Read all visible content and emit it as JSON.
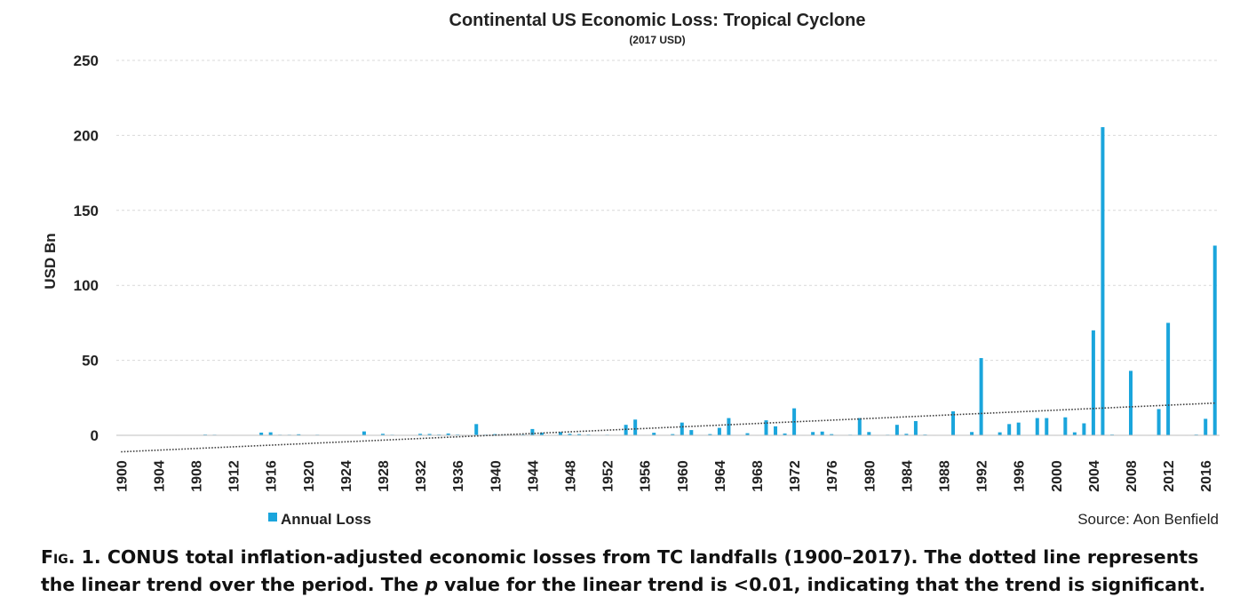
{
  "chart_data": {
    "type": "bar",
    "title": "Continental US Economic Loss: Tropical Cyclone",
    "subtitle": "(2017 USD)",
    "ylabel": "USD Bn",
    "xlabel": "",
    "ylim": [
      0,
      250
    ],
    "yticks": [
      0,
      50,
      100,
      150,
      200,
      250
    ],
    "x_tick_labels": [
      "1900",
      "1904",
      "1908",
      "1912",
      "1916",
      "1920",
      "1924",
      "1928",
      "1932",
      "1936",
      "1940",
      "1944",
      "1948",
      "1952",
      "1956",
      "1960",
      "1964",
      "1968",
      "1972",
      "1976",
      "1980",
      "1984",
      "1988",
      "1992",
      "1996",
      "2000",
      "2004",
      "2008",
      "2012",
      "2016"
    ],
    "grid": "horizontal dotted",
    "legend_position": "bottom-left",
    "bar_color": "#1aa5dc",
    "trend_color": "#404040",
    "series": [
      {
        "name": "Annual Loss",
        "years": [
          1900,
          1901,
          1902,
          1903,
          1904,
          1905,
          1906,
          1907,
          1908,
          1909,
          1910,
          1911,
          1912,
          1913,
          1914,
          1915,
          1916,
          1917,
          1918,
          1919,
          1920,
          1921,
          1922,
          1923,
          1924,
          1925,
          1926,
          1927,
          1928,
          1929,
          1930,
          1931,
          1932,
          1933,
          1934,
          1935,
          1936,
          1937,
          1938,
          1939,
          1940,
          1941,
          1942,
          1943,
          1944,
          1945,
          1946,
          1947,
          1948,
          1949,
          1950,
          1951,
          1952,
          1953,
          1954,
          1955,
          1956,
          1957,
          1958,
          1959,
          1960,
          1961,
          1962,
          1963,
          1964,
          1965,
          1966,
          1967,
          1968,
          1969,
          1970,
          1971,
          1972,
          1973,
          1974,
          1975,
          1976,
          1977,
          1978,
          1979,
          1980,
          1981,
          1982,
          1983,
          1984,
          1985,
          1986,
          1987,
          1988,
          1989,
          1990,
          1991,
          1992,
          1993,
          1994,
          1995,
          1996,
          1997,
          1998,
          1999,
          2000,
          2001,
          2002,
          2003,
          2004,
          2005,
          2006,
          2007,
          2008,
          2009,
          2010,
          2011,
          2012,
          2013,
          2014,
          2015,
          2016,
          2017
        ],
        "values": [
          0.3,
          0.2,
          0.2,
          0.2,
          0.3,
          0.2,
          0.3,
          0.2,
          0.2,
          0.5,
          0.4,
          0.2,
          0.3,
          0.2,
          0.2,
          1.8,
          2.0,
          0.4,
          0.4,
          0.7,
          0.2,
          0.4,
          0.2,
          0.2,
          0.2,
          0.2,
          2.6,
          0.2,
          1.0,
          0.4,
          0.2,
          0.2,
          1.0,
          0.9,
          0.5,
          1.2,
          0.5,
          0.3,
          7.5,
          0.4,
          0.8,
          0.4,
          0.3,
          0.5,
          4.2,
          1.8,
          0.3,
          2.2,
          1.0,
          0.8,
          0.5,
          0.2,
          0.4,
          0.3,
          7.0,
          10.5,
          0.3,
          1.7,
          0.2,
          0.8,
          8.5,
          3.5,
          0.3,
          0.8,
          5.0,
          11.5,
          0.3,
          1.4,
          0.3,
          10.0,
          6.0,
          1.2,
          18.0,
          0.3,
          2.2,
          2.5,
          0.8,
          0.2,
          0.4,
          11.5,
          2.2,
          0.3,
          0.4,
          7.0,
          1.0,
          9.5,
          0.5,
          0.3,
          0.2,
          16.0,
          0.2,
          2.2,
          51.5,
          0.2,
          2.0,
          7.5,
          8.5,
          0.3,
          11.5,
          11.5,
          0.3,
          12.0,
          2.0,
          8.0,
          70.0,
          205.5,
          0.5,
          0.2,
          43.0,
          0.3,
          0.3,
          17.5,
          75.0,
          0.3,
          0.3,
          0.5,
          11.0,
          126.5
        ]
      }
    ],
    "trend": {
      "type": "linear",
      "start_value": -11,
      "end_value": 21.5
    }
  },
  "source": "Source: Aon Benfield",
  "caption": {
    "fig_label": "Fig. 1.",
    "part1": " CONUS total inflation-adjusted economic losses from TC landfalls (1900–2017). The dotted line represents the linear trend over the period. The ",
    "p_var": "p",
    "part2": " value for the linear trend is <0.01, indicating that the trend is significant."
  }
}
